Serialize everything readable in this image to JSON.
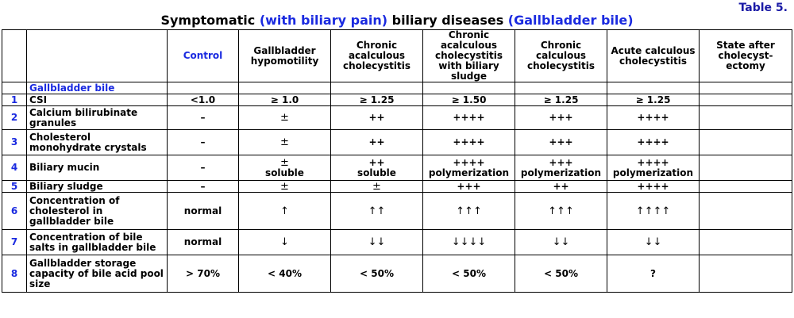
{
  "table_number": "Table 5.",
  "title": {
    "part1": "Symptomatic ",
    "part2": "(with biliary pain)",
    "part3": " biliary diseases ",
    "part4": "(Gallbladder bile)"
  },
  "columns": [
    "Control",
    "Gallbladder hypomotility",
    "Chronic acalculous cholecystitis",
    "Chronic acalculous cholecystitis with biliary sludge",
    "Chronic calculous cholecystitis",
    "Acute calculous cholecystitis",
    "State after cholecyst-ectomy"
  ],
  "section_label": "Gallbladder bile",
  "rows": [
    {
      "num": "1",
      "param": "CSI",
      "cells": [
        "<1.0",
        "≥ 1.0",
        "≥ 1.25",
        "≥ 1.50",
        "≥ 1.25",
        "≥ 1.25",
        ""
      ]
    },
    {
      "num": "2",
      "param": "Calcium bilirubinate granules",
      "cells": [
        "–",
        "±",
        "++",
        "++++",
        "+++",
        "++++",
        ""
      ]
    },
    {
      "num": "3",
      "param": "Cholesterol monohydrate crystals",
      "cells": [
        "–",
        "±",
        "++",
        "++++",
        "+++",
        "++++",
        ""
      ]
    },
    {
      "num": "4",
      "param": "Biliary mucin",
      "cells": [
        "–",
        "±",
        "++",
        "++++",
        "+++",
        "++++",
        ""
      ],
      "sub": [
        "",
        "soluble",
        "soluble",
        "polymerization",
        "polymerization",
        "polymerization",
        ""
      ]
    },
    {
      "num": "5",
      "param": "Biliary sludge",
      "cells": [
        "–",
        "±",
        "±",
        "+++",
        "++",
        "++++",
        ""
      ]
    },
    {
      "num": "6",
      "param": "Concentration of cholesterol in gallbladder bile",
      "cells": [
        "normal",
        "↑",
        "↑↑",
        "↑↑↑",
        "↑↑↑",
        "↑↑↑↑",
        ""
      ]
    },
    {
      "num": "7",
      "param": "Concentration of bile salts in gallbladder bile",
      "cells": [
        "normal",
        "↓",
        "↓↓",
        "↓↓↓↓",
        "↓↓",
        "↓↓",
        ""
      ]
    },
    {
      "num": "8",
      "param": "Gallbladder storage capacity of bile acid pool size",
      "cells": [
        "> 70%",
        "< 40%",
        "< 50%",
        "< 50%",
        "< 50%",
        "?",
        ""
      ]
    }
  ]
}
